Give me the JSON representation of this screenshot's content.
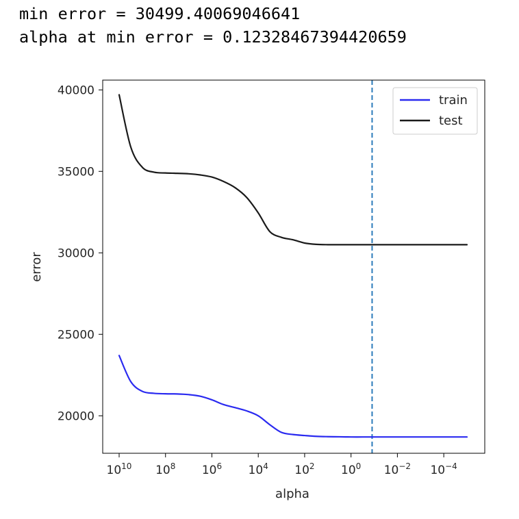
{
  "output": {
    "min_error_line": "min error = 30499.40069046641",
    "alpha_line": "alpha at min error = 0.12328467394420659"
  },
  "chart_data": {
    "type": "line",
    "title": "",
    "xlabel": "alpha",
    "ylabel": "error",
    "x_scale": "log",
    "x_inverted": true,
    "xlim": [
      10000000000.0,
      1e-05
    ],
    "ylim": [
      17700,
      40600
    ],
    "x_ticks": [
      {
        "value": 10000000000.0,
        "base": "10",
        "exp": "10"
      },
      {
        "value": 100000000.0,
        "base": "10",
        "exp": "8"
      },
      {
        "value": 1000000.0,
        "base": "10",
        "exp": "6"
      },
      {
        "value": 10000.0,
        "base": "10",
        "exp": "4"
      },
      {
        "value": 100.0,
        "base": "10",
        "exp": "2"
      },
      {
        "value": 1,
        "base": "10",
        "exp": "0"
      },
      {
        "value": 0.01,
        "base": "10",
        "exp": "−2"
      },
      {
        "value": 0.0001,
        "base": "10",
        "exp": "−4"
      }
    ],
    "y_ticks": [
      20000,
      25000,
      30000,
      35000,
      40000
    ],
    "y_tick_labels": [
      "20000",
      "25000",
      "30000",
      "35000",
      "40000"
    ],
    "grid": false,
    "legend_position": "top-right",
    "vline": {
      "x": 0.12328467394420659,
      "color": "#2b7bba",
      "style": "dashed"
    },
    "series": [
      {
        "name": "train",
        "color": "#2a2af0",
        "x": [
          10000000000.0,
          3160000000.0,
          1000000000.0,
          316000000.0,
          100000000.0,
          31600000.0,
          10000000.0,
          3160000.0,
          1000000.0,
          316000.0,
          100000.0,
          31600.0,
          10000.0,
          3160.0,
          1000.0,
          316.0,
          100.0,
          31.6,
          10.0,
          3.16,
          1,
          0.316,
          0.1,
          0.01,
          0.001,
          0.0001,
          1e-05
        ],
        "y": [
          23700,
          22100,
          21500,
          21380,
          21350,
          21340,
          21300,
          21200,
          20980,
          20690,
          20500,
          20300,
          20000,
          19450,
          18980,
          18850,
          18790,
          18740,
          18720,
          18710,
          18700,
          18700,
          18700,
          18700,
          18700,
          18700,
          18700
        ]
      },
      {
        "name": "test",
        "color": "#1a1a1a",
        "x": [
          10000000000.0,
          3160000000.0,
          1000000000.0,
          316000000.0,
          100000000.0,
          31600000.0,
          10000000.0,
          3160000.0,
          1000000.0,
          316000.0,
          100000.0,
          31600.0,
          10000.0,
          3160.0,
          1000.0,
          316.0,
          100.0,
          31.6,
          10.0,
          3.16,
          1,
          0.316,
          0.1,
          0.01,
          0.001,
          0.0001,
          1e-05
        ],
        "y": [
          39700,
          36500,
          35250,
          34950,
          34900,
          34880,
          34850,
          34780,
          34650,
          34380,
          34000,
          33400,
          32450,
          31300,
          30950,
          30800,
          30600,
          30520,
          30500,
          30500,
          30500,
          30500,
          30500,
          30500,
          30500,
          30500,
          30500
        ]
      }
    ]
  }
}
